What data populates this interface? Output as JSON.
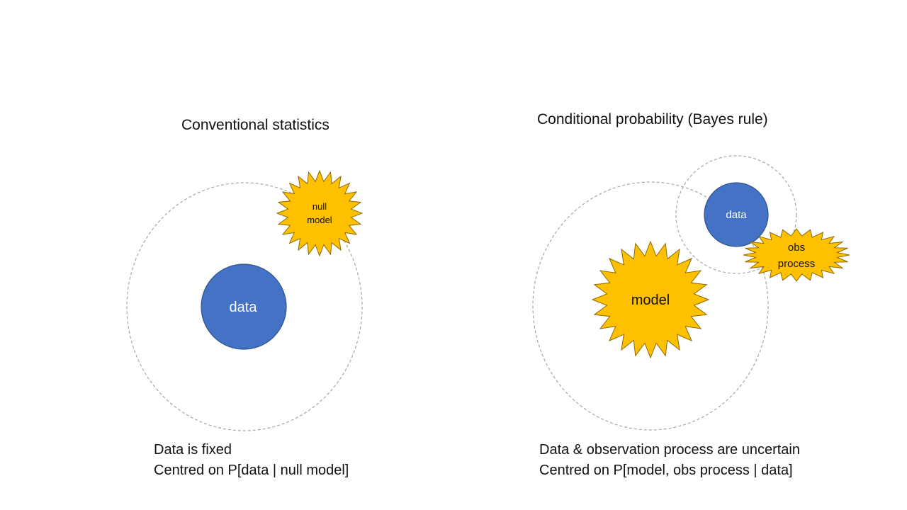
{
  "left_panel": {
    "title": "Conventional statistics",
    "data_label": "data",
    "null_model_line1": "null",
    "null_model_line2": "model",
    "caption_line1": "Data is fixed",
    "caption_line2": "Centred on P[data | null model]"
  },
  "right_panel": {
    "title": "Conditional probability (Bayes rule)",
    "model_label": "model",
    "data_label": "data",
    "obs_line1": "obs",
    "obs_line2": "process",
    "caption_line1": "Data & observation process are uncertain",
    "caption_line2": "Centred on P[model, obs process | data]"
  },
  "colors": {
    "data_fill": "#4472C4",
    "data_stroke": "#2F528F",
    "star_fill": "#FFC000",
    "star_stroke": "#8C6A00",
    "dashed_circle": "#A6A6A6"
  }
}
